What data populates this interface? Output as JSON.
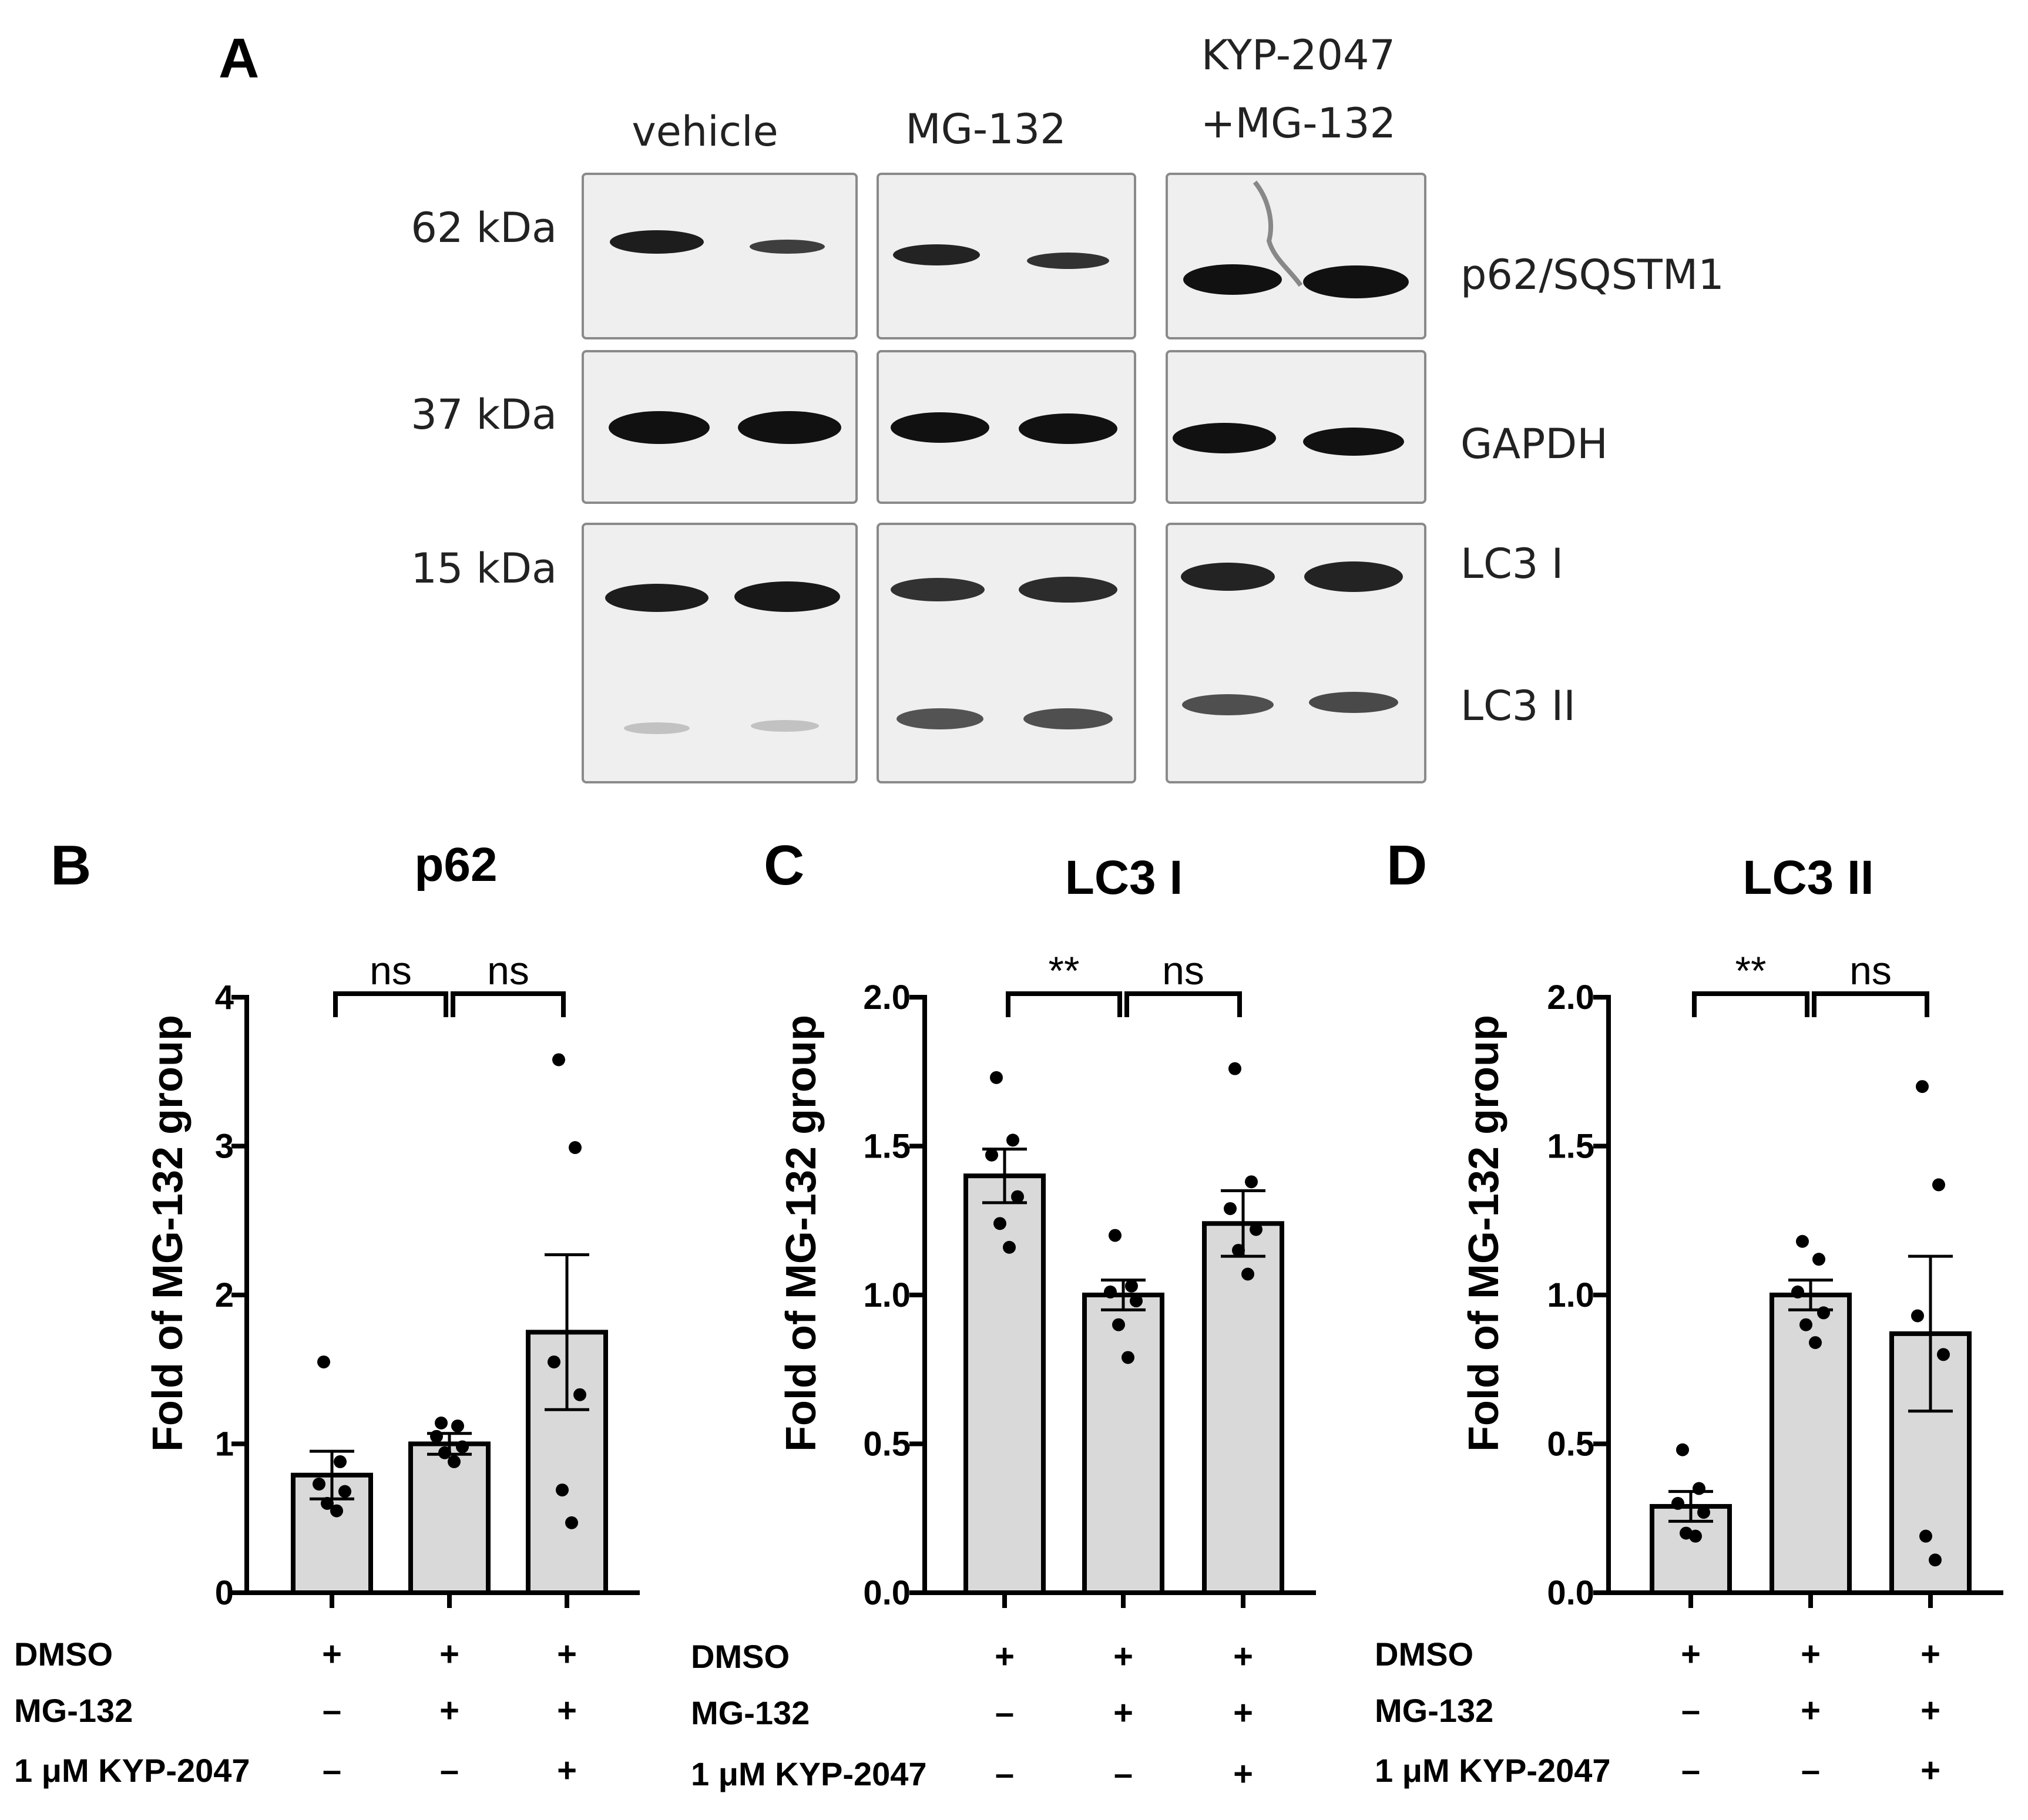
{
  "panel_a": {
    "letter": "A",
    "groups": [
      {
        "label_lines": [
          "vehicle"
        ]
      },
      {
        "label_lines": [
          "MG-132"
        ]
      },
      {
        "label_lines": [
          "KYP-2047",
          "+MG-132"
        ]
      }
    ],
    "markers": [
      "62 kDa",
      "37 kDa",
      "15 kDa"
    ],
    "proteins": [
      "p62/SQSTM1",
      "GAPDH",
      "LC3 I",
      "LC3 II"
    ],
    "band_color": "#111111",
    "membrane_color": "#efefef"
  },
  "conditions": {
    "rows": [
      "DMSO",
      "MG-132",
      "1 μM KYP-2047"
    ],
    "signs": [
      [
        "+",
        "+",
        "+"
      ],
      [
        "–",
        "+",
        "+"
      ],
      [
        "–",
        "–",
        "+"
      ]
    ]
  },
  "colors": {
    "bar_fill": "#d9d9d9",
    "stroke": "#000000",
    "point": "#000000"
  },
  "chart_data": [
    {
      "letter": "B",
      "type": "bar",
      "title": "p62",
      "ylabel": "Fold of MG-132 group",
      "ylim": [
        0,
        4
      ],
      "yticks": [
        0,
        1,
        2,
        3,
        4
      ],
      "ytick_labels": [
        "0",
        "1",
        "2",
        "3",
        "4"
      ],
      "values": [
        0.79,
        1.0,
        1.75
      ],
      "sem": [
        0.16,
        0.07,
        0.52
      ],
      "points": [
        [
          1.55,
          0.88,
          0.73,
          0.68,
          0.6,
          0.55
        ],
        [
          1.14,
          1.12,
          1.05,
          0.98,
          0.94,
          0.88
        ],
        [
          3.58,
          2.99,
          1.55,
          1.33,
          0.69,
          0.47
        ]
      ],
      "significance": [
        "ns",
        "ns"
      ]
    },
    {
      "letter": "C",
      "type": "bar",
      "title": "LC3 I",
      "ylabel": "Fold of MG-132 group",
      "ylim": [
        0,
        2
      ],
      "yticks": [
        0,
        0.5,
        1,
        1.5,
        2
      ],
      "ytick_labels": [
        "0.0",
        "0.5",
        "1.0",
        "1.5",
        "2.0"
      ],
      "values": [
        1.4,
        1.0,
        1.24
      ],
      "sem": [
        0.09,
        0.05,
        0.11
      ],
      "points": [
        [
          1.73,
          1.52,
          1.47,
          1.33,
          1.24,
          1.16
        ],
        [
          1.2,
          1.03,
          1.01,
          0.98,
          0.9,
          0.79
        ],
        [
          1.76,
          1.38,
          1.29,
          1.22,
          1.15,
          1.07
        ]
      ],
      "significance": [
        "**",
        "ns"
      ]
    },
    {
      "letter": "D",
      "type": "bar",
      "title": "LC3 II",
      "ylabel": "Fold of MG-132 group",
      "ylim": [
        0,
        2
      ],
      "yticks": [
        0,
        0.5,
        1,
        1.5,
        2
      ],
      "ytick_labels": [
        "0.0",
        "0.5",
        "1.0",
        "1.5",
        "2.0"
      ],
      "values": [
        0.29,
        1.0,
        0.87
      ],
      "sem": [
        0.05,
        0.05,
        0.26
      ],
      "points": [
        [
          0.48,
          0.35,
          0.3,
          0.27,
          0.2,
          0.19
        ],
        [
          1.18,
          1.12,
          1.01,
          0.94,
          0.9,
          0.84
        ],
        [
          1.7,
          1.37,
          0.93,
          0.8,
          0.19,
          0.11
        ]
      ],
      "significance": [
        "**",
        "ns"
      ]
    }
  ]
}
